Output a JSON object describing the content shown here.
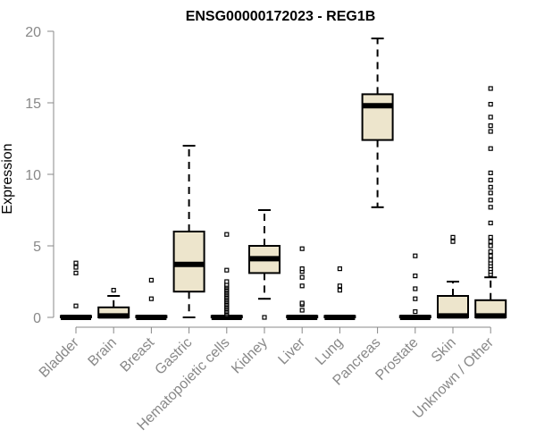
{
  "chart_data": {
    "type": "box",
    "title": "ENSG00000172023 - REG1B",
    "xlabel": "",
    "ylabel": "Expression",
    "ylim": [
      0,
      20
    ],
    "yticks": [
      0,
      5,
      10,
      15,
      20
    ],
    "grid": false,
    "legend": "none",
    "categories": [
      "Bladder",
      "Brain",
      "Breast",
      "Gastric",
      "Hematopoietic cells",
      "Kidney",
      "Liver",
      "Lung",
      "Pancreas",
      "Prostate",
      "Skin",
      "Unknown / Other"
    ],
    "boxes": [
      {
        "category": "Bladder",
        "min": 0,
        "q1": 0,
        "median": 0,
        "q3": 0.1,
        "max": 0.1,
        "outliers": [
          0.8,
          3.1,
          3.5,
          3.8
        ]
      },
      {
        "category": "Brain",
        "min": 0,
        "q1": 0,
        "median": 0.1,
        "q3": 0.7,
        "max": 1.5,
        "outliers": [
          1.9
        ]
      },
      {
        "category": "Breast",
        "min": 0,
        "q1": 0,
        "median": 0,
        "q3": 0.1,
        "max": 0.1,
        "outliers": [
          1.3,
          2.6
        ]
      },
      {
        "category": "Gastric",
        "min": 0,
        "q1": 1.8,
        "median": 3.7,
        "q3": 6.0,
        "max": 12.0,
        "outliers": []
      },
      {
        "category": "Hematopoietic cells",
        "min": 0,
        "q1": 0,
        "median": 0,
        "q3": 0.1,
        "max": 0.1,
        "outliers": [
          0.2,
          0.3,
          0.4,
          0.5,
          0.6,
          0.7,
          0.8,
          0.9,
          1.0,
          1.1,
          1.2,
          1.3,
          1.4,
          1.5,
          1.6,
          1.7,
          1.8,
          1.9,
          2.0,
          2.1,
          2.2,
          2.3,
          2.5,
          3.3,
          5.8
        ]
      },
      {
        "category": "Kidney",
        "min": 1.3,
        "q1": 3.1,
        "median": 4.1,
        "q3": 5.0,
        "max": 7.5,
        "outliers": [
          0
        ]
      },
      {
        "category": "Liver",
        "min": 0,
        "q1": 0,
        "median": 0,
        "q3": 0.1,
        "max": 0.1,
        "outliers": [
          0.5,
          0.9,
          1.0,
          2.2,
          2.8,
          3.2,
          3.4,
          4.8
        ]
      },
      {
        "category": "Lung",
        "min": 0,
        "q1": 0,
        "median": 0,
        "q3": 0.1,
        "max": 0.1,
        "outliers": [
          1.9,
          2.2,
          3.4
        ]
      },
      {
        "category": "Pancreas",
        "min": 7.7,
        "q1": 12.4,
        "median": 14.8,
        "q3": 15.6,
        "max": 19.5,
        "outliers": []
      },
      {
        "category": "Prostate",
        "min": 0,
        "q1": 0,
        "median": 0,
        "q3": 0.1,
        "max": 0.1,
        "outliers": [
          0.4,
          1.3,
          2.0,
          2.9,
          4.3
        ]
      },
      {
        "category": "Skin",
        "min": 0,
        "q1": 0,
        "median": 0.1,
        "q3": 1.5,
        "max": 2.5,
        "outliers": [
          5.3,
          5.6
        ]
      },
      {
        "category": "Unknown / Other",
        "min": 0,
        "q1": 0,
        "median": 0.1,
        "q3": 1.2,
        "max": 2.8,
        "outliers": [
          3.0,
          3.2,
          3.4,
          3.6,
          3.8,
          4.0,
          4.3,
          4.6,
          5.0,
          5.3,
          5.6,
          6.6,
          7.7,
          8.2,
          8.7,
          9.1,
          9.6,
          10.1,
          11.8,
          13.0,
          13.4,
          14.0,
          14.9,
          16.0
        ]
      }
    ],
    "colors": {
      "box_fill": "#ede5cc",
      "stroke": "#000000",
      "axis": "#888888",
      "tick_text": "#888888",
      "title_text": "#000000"
    }
  }
}
